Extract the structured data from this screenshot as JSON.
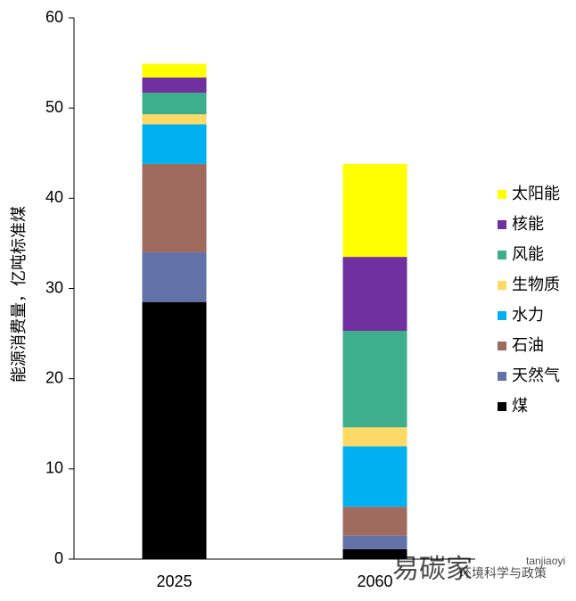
{
  "chart_data": {
    "type": "stacked_bar",
    "y_label": "能源消费量，亿吨标准煤",
    "categories": [
      "2025",
      "2060"
    ],
    "series": [
      {
        "name": "煤",
        "color": "#000000",
        "values": [
          28.5,
          1.1
        ]
      },
      {
        "name": "天然气",
        "color": "#6272a8",
        "values": [
          5.5,
          1.5
        ]
      },
      {
        "name": "石油",
        "color": "#9e6b5e",
        "values": [
          9.8,
          3.2
        ]
      },
      {
        "name": "水力",
        "color": "#00b0f0",
        "values": [
          4.4,
          6.7
        ]
      },
      {
        "name": "生物质",
        "color": "#ffd966",
        "values": [
          1.1,
          2.1
        ]
      },
      {
        "name": "风能",
        "color": "#3daf8a",
        "values": [
          2.4,
          10.7
        ]
      },
      {
        "name": "核能",
        "color": "#7030a0",
        "values": [
          1.7,
          8.2
        ]
      },
      {
        "name": "太阳能",
        "color": "#ffff00",
        "values": [
          1.5,
          10.3
        ]
      }
    ],
    "ylim": [
      0,
      60
    ],
    "yticks": [
      0,
      10,
      20,
      30,
      40,
      50,
      60
    ],
    "grid": false,
    "legend": "right",
    "watermark": [
      "易碳家",
      "tanjiaoyi",
      "环境科学与政策"
    ]
  }
}
